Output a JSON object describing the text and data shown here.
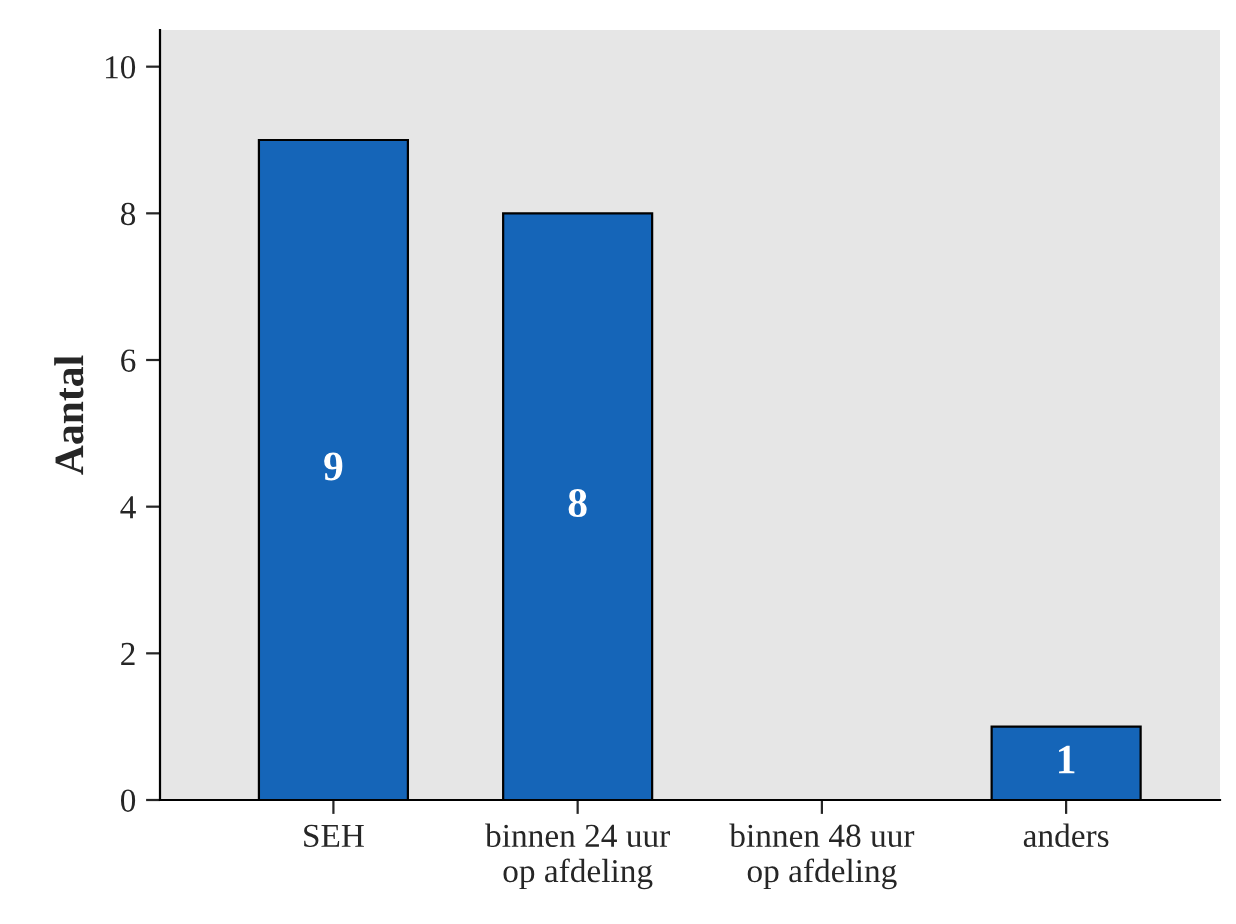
{
  "chart_data": {
    "type": "bar",
    "ylabel": "Aantal",
    "categories": [
      "SEH",
      "binnen 24 uur\nop afdeling",
      "binnen 48 uur\nop afdeling",
      "anders"
    ],
    "values": [
      9,
      8,
      0,
      1
    ],
    "value_labels": [
      "9",
      "8",
      null,
      "1"
    ],
    "color": "#1565b8",
    "ylim": [
      0,
      10.5
    ],
    "yticks": [
      0,
      2,
      4,
      6,
      8,
      10
    ],
    "grid": false
  }
}
